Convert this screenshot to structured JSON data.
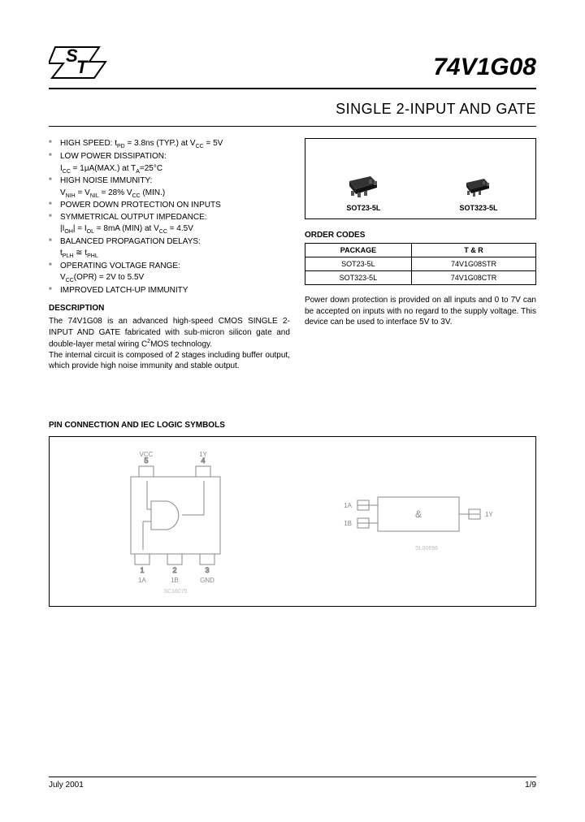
{
  "header": {
    "part_number": "74V1G08",
    "subtitle": "SINGLE 2-INPUT AND GATE"
  },
  "features": [
    {
      "main": "HIGH SPEED: t<sub>PD</sub> = 3.8ns (TYP.) at V<sub>CC</sub> = 5V"
    },
    {
      "main": "LOW POWER DISSIPATION:",
      "sub": "I<sub>CC</sub> = 1μA(MAX.) at T<sub>A</sub>=25°C"
    },
    {
      "main": "HIGH NOISE IMMUNITY:",
      "sub": "V<sub>NIH</sub> = V<sub>NIL</sub> = 28% V<sub>CC</sub> (MIN.)"
    },
    {
      "main": "POWER DOWN PROTECTION ON INPUTS"
    },
    {
      "main": "SYMMETRICAL OUTPUT IMPEDANCE:",
      "sub": "|I<sub>OH</sub>| = I<sub>OL</sub> = 8mA (MIN) at V<sub>CC</sub> = 4.5V"
    },
    {
      "main": "BALANCED PROPAGATION DELAYS:",
      "sub": "t<sub>PLH</sub> ≅ t<sub>PHL</sub>"
    },
    {
      "main": "OPERATING VOLTAGE RANGE:",
      "sub": "V<sub>CC</sub>(OPR) = 2V to 5.5V"
    },
    {
      "main": "IMPROVED LATCH-UP IMMUNITY"
    }
  ],
  "description": {
    "heading": "DESCRIPTION",
    "p1": "The 74V1G08 is an advanced high-speed CMOS SINGLE 2-INPUT AND GATE fabricated with sub-micron silicon gate and double-layer metal wiring C<sup>2</sup>MOS technology.",
    "p2": "The internal circuit is composed of 2 stages including buffer output, which provide high noise immunity and stable output."
  },
  "packages": {
    "sot23": "SOT23-5L",
    "sot323": "SOT323-5L"
  },
  "order": {
    "title": "ORDER CODES",
    "headers": [
      "PACKAGE",
      "T & R"
    ],
    "rows": [
      [
        "SOT23-5L",
        "74V1G08STR"
      ],
      [
        "SOT323-5L",
        "74V1G08CTR"
      ]
    ]
  },
  "right_desc": "Power down protection is provided on all inputs and 0 to 7V can be accepted on inputs with no regard to the supply voltage. This device can be used to interface 5V to 3V.",
  "pin_section": {
    "title": "PIN CONNECTION AND IEC LOGIC SYMBOLS",
    "left_ref": "SC16075",
    "right_ref": "SL00696",
    "pins": {
      "vcc": "V<sub>CC</sub>",
      "y": "1Y",
      "a": "1A",
      "b": "1B",
      "gnd": "GND"
    },
    "iec": {
      "sym": "&",
      "in1": "1A",
      "in2": "1B",
      "out": "1Y"
    }
  },
  "footer": {
    "date": "July 2001",
    "page": "1/9"
  },
  "colors": {
    "text": "#000000",
    "border": "#000000",
    "bg": "#ffffff",
    "faint": "#aaaaaa"
  }
}
